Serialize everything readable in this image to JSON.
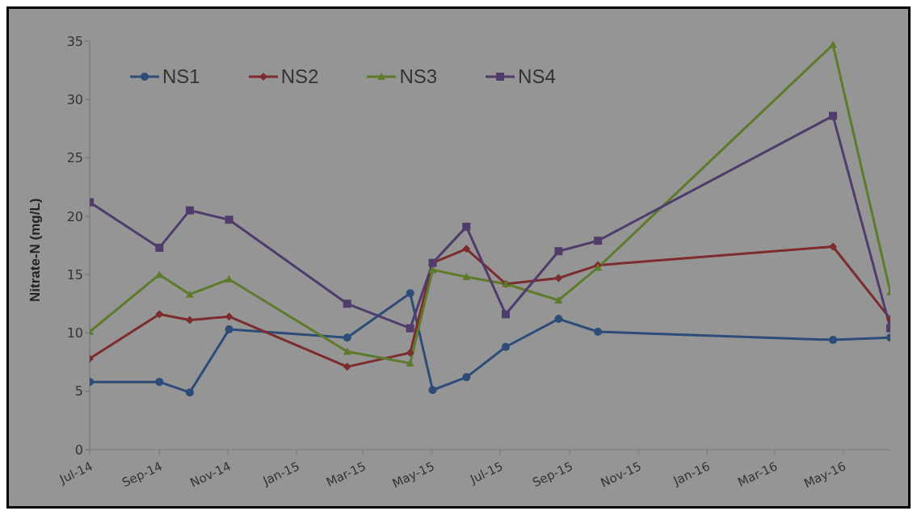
{
  "chart_data": {
    "type": "line",
    "ylabel": "Nitrate-N (mg/L)",
    "x": [
      "2014-07-01",
      "2014-09-01",
      "2014-09-28",
      "2014-11-02",
      "2015-02-15",
      "2015-04-12",
      "2015-05-02",
      "2015-06-01",
      "2015-07-06",
      "2015-08-22",
      "2015-09-26",
      "2016-04-22",
      "2016-06-12"
    ],
    "series": [
      {
        "name": "NS1",
        "color": "#2d4d78",
        "marker": "circle",
        "values": [
          5.8,
          5.8,
          4.9,
          10.3,
          9.6,
          13.4,
          5.1,
          6.2,
          8.8,
          11.2,
          10.1,
          9.4,
          9.6
        ]
      },
      {
        "name": "NS2",
        "color": "#7c2c2c",
        "marker": "diamond",
        "values": [
          7.8,
          11.6,
          11.1,
          11.4,
          7.1,
          8.3,
          16.0,
          17.2,
          14.2,
          14.7,
          15.8,
          17.4,
          11.2
        ]
      },
      {
        "name": "NS3",
        "color": "#5e7b2b",
        "marker": "triangle",
        "values": [
          10.1,
          15.0,
          13.3,
          14.6,
          8.4,
          7.4,
          15.4,
          14.8,
          14.2,
          12.8,
          15.6,
          34.7,
          13.5
        ]
      },
      {
        "name": "NS4",
        "color": "#4f3c6c",
        "marker": "square",
        "values": [
          21.2,
          17.3,
          20.5,
          19.7,
          12.5,
          10.4,
          16.0,
          19.1,
          11.6,
          17.0,
          17.9,
          28.6,
          10.4
        ]
      }
    ],
    "xlim": [
      "2014-07-01",
      "2016-06-12"
    ],
    "xticks": [
      {
        "value": "2014-07-01",
        "label": "Jul-14"
      },
      {
        "value": "2014-09-01",
        "label": "Sep-14"
      },
      {
        "value": "2014-11-01",
        "label": "Nov-14"
      },
      {
        "value": "2015-01-01",
        "label": "Jan-15"
      },
      {
        "value": "2015-03-01",
        "label": "Mar-15"
      },
      {
        "value": "2015-05-01",
        "label": "May-15"
      },
      {
        "value": "2015-07-01",
        "label": "Jul-15"
      },
      {
        "value": "2015-09-01",
        "label": "Sep-15"
      },
      {
        "value": "2015-11-01",
        "label": "Nov-15"
      },
      {
        "value": "2016-01-01",
        "label": "Jan-16"
      },
      {
        "value": "2016-03-01",
        "label": "Mar-16"
      },
      {
        "value": "2016-05-01",
        "label": "May-16"
      }
    ],
    "ylim": [
      0,
      35
    ],
    "yticks": [
      0,
      5,
      10,
      15,
      20,
      25,
      30,
      35
    ],
    "grid": false,
    "legend": "top left",
    "line_style": "solid"
  }
}
